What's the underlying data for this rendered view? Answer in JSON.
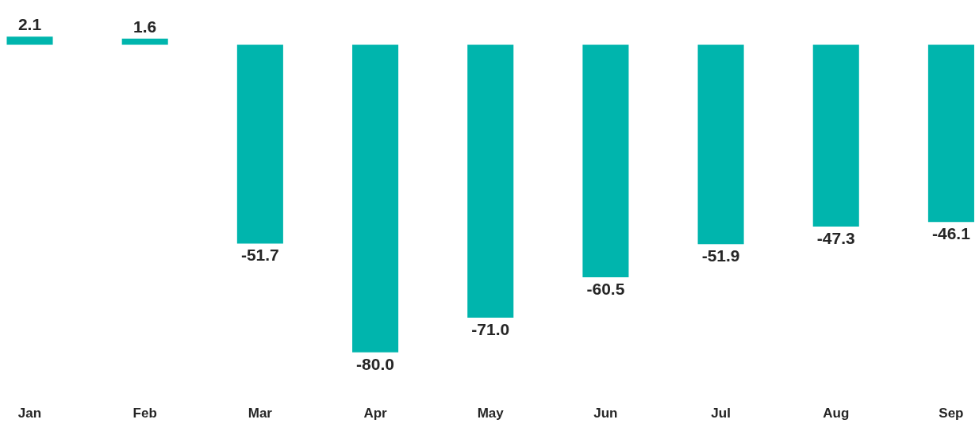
{
  "chart_data": {
    "type": "bar",
    "categories": [
      "Jan",
      "Feb",
      "Mar",
      "Apr",
      "May",
      "Jun",
      "Jul",
      "Aug",
      "Sep"
    ],
    "values": [
      2.1,
      1.6,
      -51.7,
      -80.0,
      -71.0,
      -60.5,
      -51.9,
      -47.3,
      -46.1
    ],
    "value_labels": [
      "2.1",
      "1.6",
      "-51.7",
      "-80.0",
      "-71.0",
      "-60.5",
      "-51.9",
      "-47.3",
      "-46.1"
    ],
    "color": "#00b5ad",
    "grid": false,
    "tick_labels": "x"
  }
}
